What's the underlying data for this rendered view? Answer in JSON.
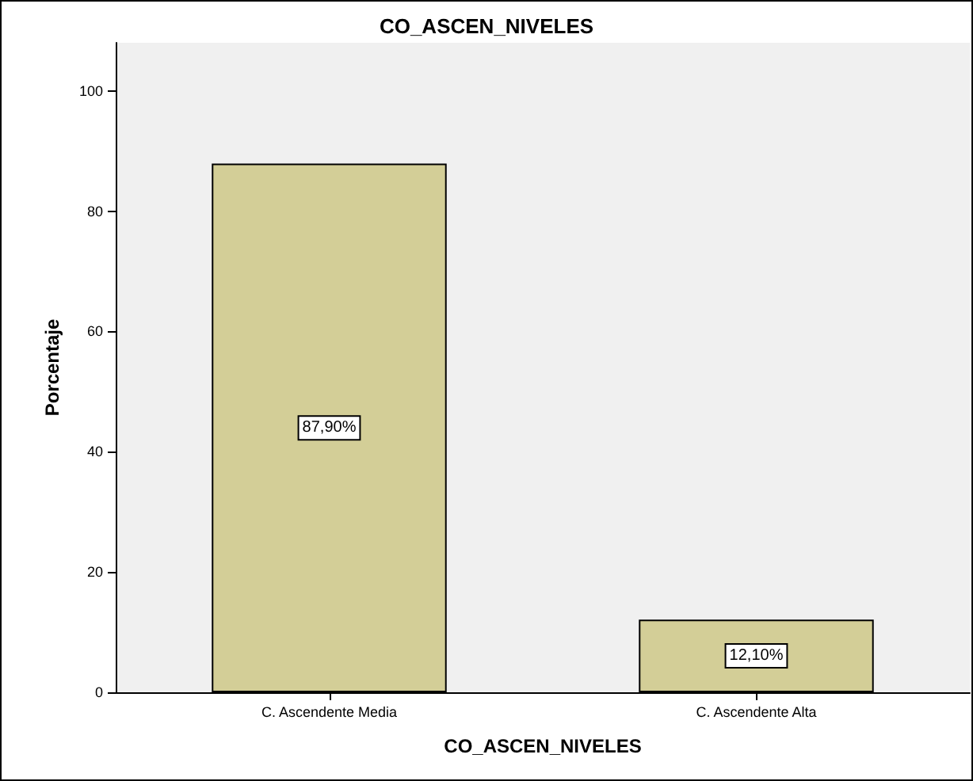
{
  "chart_data": {
    "type": "bar",
    "title": "CO_ASCEN_NIVELES",
    "xlabel": "CO_ASCEN_NIVELES",
    "ylabel": "Porcentaje",
    "categories": [
      "C. Ascendente Media",
      "C. Ascendente Alta"
    ],
    "values": [
      87.9,
      12.1
    ],
    "value_labels": [
      "87,90%",
      "12,10%"
    ],
    "color": "#d3ce97",
    "ylim": [
      0,
      108
    ],
    "yticks": [
      0,
      20,
      40,
      60,
      80,
      100
    ],
    "grid": false
  }
}
